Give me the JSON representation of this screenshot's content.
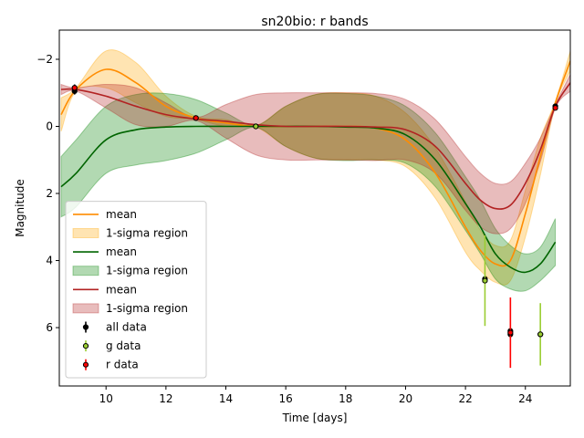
{
  "chart_data": {
    "type": "gp-light-curve",
    "title": "sn20bio: r bands",
    "x_label": "Time [days]",
    "y_label": "Magnitude",
    "xlim": [
      8.44,
      25.5
    ],
    "ylim": [
      -2.87,
      7.74
    ],
    "y_inverted": true,
    "xticks": [
      10,
      12,
      14,
      16,
      18,
      20,
      22,
      24
    ],
    "yticks": [
      {
        "value": -2,
        "label": "−2"
      },
      0,
      2,
      4,
      6
    ],
    "legend": "lower left",
    "series": [
      {
        "name": "mean",
        "kind": "line",
        "color": "#ff8c00",
        "x": [
          8.5,
          9,
          10,
          11,
          12,
          13,
          14,
          15,
          16,
          17,
          18,
          19,
          20,
          21,
          22,
          22.5,
          23,
          23.5,
          24,
          24.5,
          25,
          25.5
        ],
        "values": [
          -0.35,
          -1.1,
          -1.7,
          -1.3,
          -0.6,
          -0.25,
          -0.1,
          0,
          0,
          0,
          0,
          0.05,
          0.4,
          1.4,
          3.0,
          3.7,
          4.1,
          4.0,
          2.6,
          0.9,
          -0.7,
          -1.95
        ]
      },
      {
        "name": "1-sigma region",
        "kind": "band",
        "color": "#ffa500",
        "x": [
          8.5,
          9,
          10,
          11,
          12,
          13,
          14,
          15,
          16,
          17,
          18,
          19,
          20,
          21,
          22,
          22.5,
          23,
          23.5,
          24,
          24.5,
          25,
          25.5
        ],
        "lower": [
          -0.85,
          -1.15,
          -2.25,
          -1.9,
          -0.9,
          -0.3,
          -0.2,
          -0.02,
          -0.6,
          -0.95,
          -1.0,
          -0.9,
          -0.4,
          0.65,
          2.25,
          3.1,
          3.55,
          3.4,
          1.9,
          0.35,
          -0.75,
          -2.25
        ],
        "upper": [
          0.15,
          -1.05,
          -1.15,
          -0.7,
          -0.3,
          -0.2,
          0.0,
          0.02,
          0.6,
          0.95,
          1.0,
          1.0,
          1.2,
          2.15,
          3.75,
          4.3,
          4.65,
          4.6,
          3.3,
          1.45,
          -0.65,
          -1.65
        ]
      },
      {
        "name": "mean",
        "kind": "line",
        "color": "#006400",
        "x": [
          8.5,
          9,
          10,
          11,
          12,
          13,
          14,
          15,
          16,
          17,
          18,
          19,
          20,
          21,
          22,
          22.5,
          23,
          23.5,
          24,
          24.5,
          25
        ],
        "values": [
          1.8,
          1.4,
          0.4,
          0.1,
          0.02,
          0,
          0,
          0,
          0,
          0,
          0.02,
          0.05,
          0.25,
          1.0,
          2.3,
          3.0,
          3.8,
          4.2,
          4.35,
          4.1,
          3.45
        ]
      },
      {
        "name": "1-sigma region",
        "kind": "band",
        "color": "#008000",
        "x": [
          8.5,
          9,
          10,
          11,
          12,
          13,
          14,
          15,
          16,
          17,
          18,
          19,
          20,
          21,
          22,
          22.5,
          23,
          23.5,
          24,
          24.5,
          25
        ],
        "lower": [
          0.9,
          0.4,
          -0.6,
          -0.95,
          -0.98,
          -0.8,
          -0.4,
          -0.03,
          -0.6,
          -0.95,
          -0.98,
          -0.9,
          -0.6,
          0.2,
          1.5,
          2.2,
          3.05,
          3.55,
          3.8,
          3.6,
          2.75
        ],
        "upper": [
          2.7,
          2.4,
          1.4,
          1.15,
          1.02,
          0.8,
          0.4,
          0.03,
          0.6,
          0.95,
          1.02,
          1.0,
          1.1,
          1.8,
          3.1,
          3.8,
          4.55,
          4.85,
          4.9,
          4.6,
          4.15
        ]
      },
      {
        "name": "mean",
        "kind": "line",
        "color": "#b22222",
        "x": [
          8.5,
          9,
          10,
          11,
          12,
          13,
          14,
          15,
          16,
          17,
          18,
          19,
          20,
          21,
          22,
          22.5,
          23,
          23.5,
          24,
          24.5,
          25,
          25.5
        ],
        "values": [
          -1.1,
          -1.1,
          -0.9,
          -0.6,
          -0.35,
          -0.22,
          -0.15,
          -0.05,
          0,
          0,
          0,
          0.02,
          0.1,
          0.6,
          1.7,
          2.2,
          2.45,
          2.35,
          1.7,
          0.7,
          -0.6,
          -1.3
        ]
      },
      {
        "name": "1-sigma region",
        "kind": "band",
        "color": "#b22222",
        "x": [
          8.5,
          9,
          10,
          11,
          12,
          13,
          14,
          15,
          16,
          17,
          18,
          19,
          20,
          21,
          22,
          22.5,
          23,
          23.5,
          24,
          24.5,
          25,
          25.5
        ],
        "lower": [
          -1.25,
          -1.15,
          -1.25,
          -1.15,
          -0.7,
          -0.27,
          -0.65,
          -0.95,
          -1.0,
          -1.0,
          -1.0,
          -0.98,
          -0.8,
          -0.2,
          0.9,
          1.4,
          1.7,
          1.65,
          1.1,
          0.35,
          -0.65,
          -1.55
        ],
        "upper": [
          -0.95,
          -1.05,
          -0.55,
          -0.05,
          0.0,
          -0.17,
          0.35,
          0.85,
          1.0,
          1.0,
          1.0,
          1.02,
          1.0,
          1.4,
          2.5,
          3.0,
          3.2,
          3.05,
          2.3,
          1.05,
          -0.55,
          -1.05
        ]
      },
      {
        "name": "all data",
        "kind": "errorbar",
        "color": "#000000",
        "x": [
          8.95,
          8.95,
          13.0,
          15.0,
          22.65,
          23.5,
          23.5,
          24.5,
          25.0
        ],
        "values": [
          -1.15,
          -1.05,
          -0.25,
          0.0,
          4.55,
          6.1,
          6.2,
          6.2,
          -0.6
        ],
        "errors": [
          0.1,
          0.1,
          0.05,
          0.05,
          0.1,
          0.1,
          0.1,
          0.1,
          0.05
        ]
      },
      {
        "name": "g data",
        "kind": "errorbar",
        "color": "#9acd32",
        "x": [
          15.0,
          22.65,
          24.5
        ],
        "values": [
          0.0,
          4.6,
          6.2
        ],
        "errors": [
          0.05,
          1.35,
          0.93
        ]
      },
      {
        "name": "r data",
        "kind": "errorbar",
        "color": "#ff0000",
        "x": [
          8.95,
          13.0,
          23.5,
          25.0
        ],
        "values": [
          -1.15,
          -0.25,
          6.15,
          -0.55
        ],
        "errors": [
          0.05,
          0.05,
          1.05,
          0.05
        ]
      }
    ]
  }
}
